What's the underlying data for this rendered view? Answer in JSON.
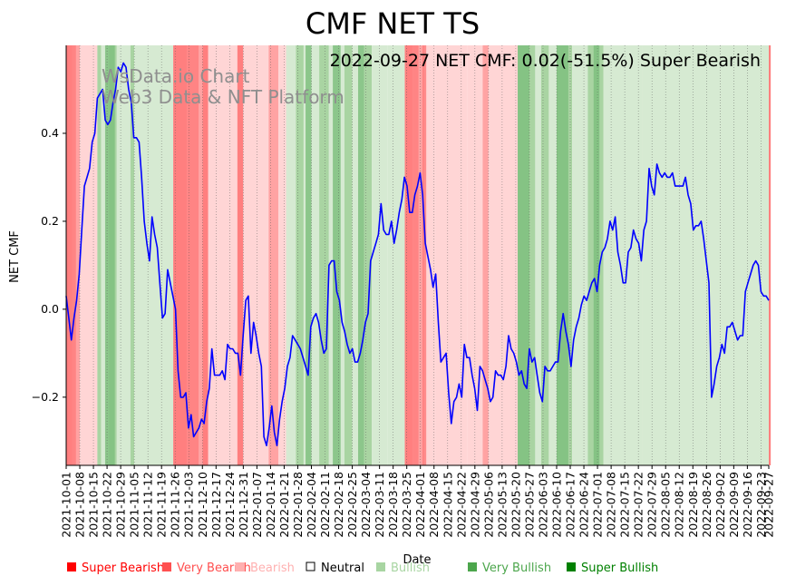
{
  "chart_data": {
    "type": "line",
    "title": "CMF NET TS",
    "xlabel": "Date",
    "ylabel": "NET CMF",
    "ylim": [
      -0.355,
      0.6
    ],
    "yticks": [
      -0.2,
      0.0,
      0.2,
      0.4
    ],
    "ytick_labels": [
      "−0.2",
      "0.0",
      "0.2",
      "0.4"
    ],
    "x_start": "2021-10-01",
    "x_end": "2022-09-27",
    "xtick_labels": [
      "2021-10-01",
      "2021-10-08",
      "2021-10-15",
      "2021-10-22",
      "2021-10-29",
      "2021-11-05",
      "2021-11-12",
      "2021-11-19",
      "2021-11-26",
      "2021-12-03",
      "2021-12-10",
      "2021-12-17",
      "2021-12-24",
      "2021-12-31",
      "2022-01-07",
      "2022-01-14",
      "2022-01-21",
      "2022-01-28",
      "2022-02-04",
      "2022-02-11",
      "2022-02-18",
      "2022-02-25",
      "2022-03-04",
      "2022-03-11",
      "2022-03-18",
      "2022-03-25",
      "2022-04-01",
      "2022-04-08",
      "2022-04-15",
      "2022-04-22",
      "2022-04-29",
      "2022-05-06",
      "2022-05-13",
      "2022-05-20",
      "2022-05-27",
      "2022-06-03",
      "2022-06-10",
      "2022-06-17",
      "2022-06-24",
      "2022-07-01",
      "2022-07-08",
      "2022-07-15",
      "2022-07-22",
      "2022-07-29",
      "2022-08-05",
      "2022-08-12",
      "2022-08-19",
      "2022-08-26",
      "2022-09-02",
      "2022-09-09",
      "2022-09-16",
      "2022-09-23",
      "2022-09-27"
    ],
    "series": [
      {
        "name": "NET CMF",
        "color": "#0000ff",
        "values": [
          0.03,
          -0.02,
          -0.07,
          -0.02,
          0.02,
          0.08,
          0.18,
          0.28,
          0.3,
          0.32,
          0.38,
          0.4,
          0.48,
          0.49,
          0.5,
          0.43,
          0.42,
          0.43,
          0.47,
          0.5,
          0.55,
          0.54,
          0.56,
          0.55,
          0.5,
          0.47,
          0.39,
          0.39,
          0.38,
          0.3,
          0.2,
          0.15,
          0.11,
          0.21,
          0.17,
          0.14,
          0.06,
          -0.02,
          -0.01,
          0.09,
          0.06,
          0.03,
          0.0,
          -0.14,
          -0.2,
          -0.2,
          -0.19,
          -0.27,
          -0.24,
          -0.29,
          -0.28,
          -0.27,
          -0.25,
          -0.26,
          -0.21,
          -0.18,
          -0.09,
          -0.15,
          -0.15,
          -0.15,
          -0.14,
          -0.16,
          -0.08,
          -0.09,
          -0.09,
          -0.1,
          -0.1,
          -0.15,
          -0.06,
          0.02,
          0.03,
          -0.1,
          -0.03,
          -0.06,
          -0.1,
          -0.13,
          -0.29,
          -0.31,
          -0.27,
          -0.22,
          -0.28,
          -0.31,
          -0.25,
          -0.21,
          -0.18,
          -0.13,
          -0.11,
          -0.06,
          -0.07,
          -0.08,
          -0.09,
          -0.11,
          -0.13,
          -0.15,
          -0.04,
          -0.02,
          -0.01,
          -0.03,
          -0.07,
          -0.1,
          -0.09,
          0.1,
          0.11,
          0.11,
          0.04,
          0.02,
          -0.03,
          -0.05,
          -0.08,
          -0.1,
          -0.09,
          -0.12,
          -0.12,
          -0.1,
          -0.07,
          -0.03,
          -0.01,
          0.11,
          0.13,
          0.15,
          0.17,
          0.24,
          0.18,
          0.17,
          0.17,
          0.2,
          0.15,
          0.18,
          0.22,
          0.25,
          0.3,
          0.28,
          0.22,
          0.22,
          0.26,
          0.28,
          0.31,
          0.26,
          0.15,
          0.12,
          0.09,
          0.05,
          0.08,
          -0.03,
          -0.12,
          -0.11,
          -0.1,
          -0.19,
          -0.26,
          -0.21,
          -0.2,
          -0.17,
          -0.2,
          -0.08,
          -0.11,
          -0.11,
          -0.15,
          -0.18,
          -0.23,
          -0.13,
          -0.14,
          -0.16,
          -0.18,
          -0.21,
          -0.2,
          -0.14,
          -0.15,
          -0.15,
          -0.16,
          -0.13,
          -0.06,
          -0.09,
          -0.1,
          -0.12,
          -0.15,
          -0.14,
          -0.17,
          -0.18,
          -0.09,
          -0.12,
          -0.11,
          -0.15,
          -0.19,
          -0.21,
          -0.13,
          -0.14,
          -0.14,
          -0.13,
          -0.12,
          -0.12,
          -0.05,
          -0.01,
          -0.05,
          -0.08,
          -0.13,
          -0.07,
          -0.04,
          -0.02,
          0.01,
          0.03,
          0.02,
          0.04,
          0.06,
          0.07,
          0.04,
          0.1,
          0.13,
          0.14,
          0.16,
          0.2,
          0.18,
          0.21,
          0.13,
          0.1,
          0.06,
          0.06,
          0.13,
          0.14,
          0.18,
          0.16,
          0.15,
          0.11,
          0.18,
          0.2,
          0.32,
          0.28,
          0.26,
          0.33,
          0.31,
          0.3,
          0.31,
          0.3,
          0.3,
          0.31,
          0.28,
          0.28,
          0.28,
          0.28,
          0.3,
          0.26,
          0.24,
          0.18,
          0.19,
          0.19,
          0.2,
          0.16,
          0.11,
          0.06,
          -0.2,
          -0.17,
          -0.13,
          -0.11,
          -0.08,
          -0.1,
          -0.04,
          -0.04,
          -0.03,
          -0.05,
          -0.07,
          -0.06,
          -0.06,
          0.04,
          0.06,
          0.08,
          0.1,
          0.11,
          0.1,
          0.04,
          0.03,
          0.03,
          0.02
        ]
      }
    ],
    "regimes": [
      {
        "from": 0,
        "to": 3,
        "cls": "SB"
      },
      {
        "from": 3,
        "to": 7,
        "cls": "VBear"
      },
      {
        "from": 7,
        "to": 16,
        "cls": "Bear"
      },
      {
        "from": 16,
        "to": 18,
        "cls": "VBull"
      },
      {
        "from": 18,
        "to": 22,
        "cls": "Bull"
      },
      {
        "from": 22,
        "to": 26,
        "cls": "VBull"
      },
      {
        "from": 26,
        "to": 33,
        "cls": "Bull"
      },
      {
        "from": 33,
        "to": 35,
        "cls": "VBull"
      },
      {
        "from": 35,
        "to": 55,
        "cls": "Bull"
      },
      {
        "from": 55,
        "to": 62,
        "cls": "SB"
      },
      {
        "from": 62,
        "to": 70,
        "cls": "VBear"
      },
      {
        "from": 70,
        "to": 73,
        "cls": "SB"
      },
      {
        "from": 73,
        "to": 78,
        "cls": "Bear"
      },
      {
        "from": 78,
        "to": 88,
        "cls": "Bear"
      },
      {
        "from": 88,
        "to": 91,
        "cls": "SB"
      },
      {
        "from": 91,
        "to": 104,
        "cls": "Bear"
      },
      {
        "from": 104,
        "to": 109,
        "cls": "VBear"
      },
      {
        "from": 109,
        "to": 113,
        "cls": "Bear"
      },
      {
        "from": 113,
        "to": 118,
        "cls": "Bull"
      },
      {
        "from": 118,
        "to": 122,
        "cls": "VBull"
      },
      {
        "from": 122,
        "to": 130,
        "cls": "Bull"
      },
      {
        "from": 130,
        "to": 135,
        "cls": "VBull"
      },
      {
        "from": 135,
        "to": 143,
        "cls": "Bull"
      },
      {
        "from": 143,
        "to": 147,
        "cls": "VBull"
      },
      {
        "from": 147,
        "to": 153,
        "cls": "Bull"
      },
      {
        "from": 153,
        "to": 157,
        "cls": "VBull"
      },
      {
        "from": 157,
        "to": 160,
        "cls": "Bull"
      },
      {
        "from": 160,
        "to": 165,
        "cls": "Bull"
      },
      {
        "from": 165,
        "to": 174,
        "cls": "Bull"
      },
      {
        "from": 174,
        "to": 178,
        "cls": "SB"
      },
      {
        "from": 178,
        "to": 184,
        "cls": "VBear"
      },
      {
        "from": 184,
        "to": 190,
        "cls": "Bear"
      },
      {
        "from": 190,
        "to": 206,
        "cls": "Bear"
      },
      {
        "from": 206,
        "to": 214,
        "cls": "Bear"
      },
      {
        "from": 214,
        "to": 217,
        "cls": "VBear"
      },
      {
        "from": 217,
        "to": 232,
        "cls": "Bear"
      },
      {
        "from": 232,
        "to": 241,
        "cls": "VBull"
      },
      {
        "from": 241,
        "to": 244,
        "cls": "Bull"
      },
      {
        "from": 244,
        "to": 248,
        "cls": "VBull"
      },
      {
        "from": 248,
        "to": 252,
        "cls": "Bull"
      },
      {
        "from": 252,
        "to": 260,
        "cls": "VBull"
      },
      {
        "from": 260,
        "to": 268,
        "cls": "Bull"
      },
      {
        "from": 268,
        "to": 276,
        "cls": "VBull"
      },
      {
        "from": 276,
        "to": 296,
        "cls": "Bull"
      },
      {
        "from": 296,
        "to": 361,
        "cls": "Bull"
      },
      {
        "from": 361,
        "to": 362,
        "cls": "SB"
      }
    ],
    "legend": [
      {
        "label": "Super Bearish",
        "color": "#ff0000"
      },
      {
        "label": "Very Bearish",
        "color": "#ff5050"
      },
      {
        "label": "Bearish",
        "color": "#ffb0b0"
      },
      {
        "label": "Neutral",
        "color": "#000000"
      },
      {
        "label": "Bullish",
        "color": "#a8d5a2"
      },
      {
        "label": "Very Bullish",
        "color": "#4ca64c"
      },
      {
        "label": "Super Bullish",
        "color": "#008000"
      }
    ],
    "legend_placement": "bottom",
    "annotation": "2022-09-27 NET CMF: 0.02(-51.5%) Super Bearish",
    "watermark": [
      "WsData.io Chart",
      "Web3 Data & NFT Platform"
    ]
  }
}
